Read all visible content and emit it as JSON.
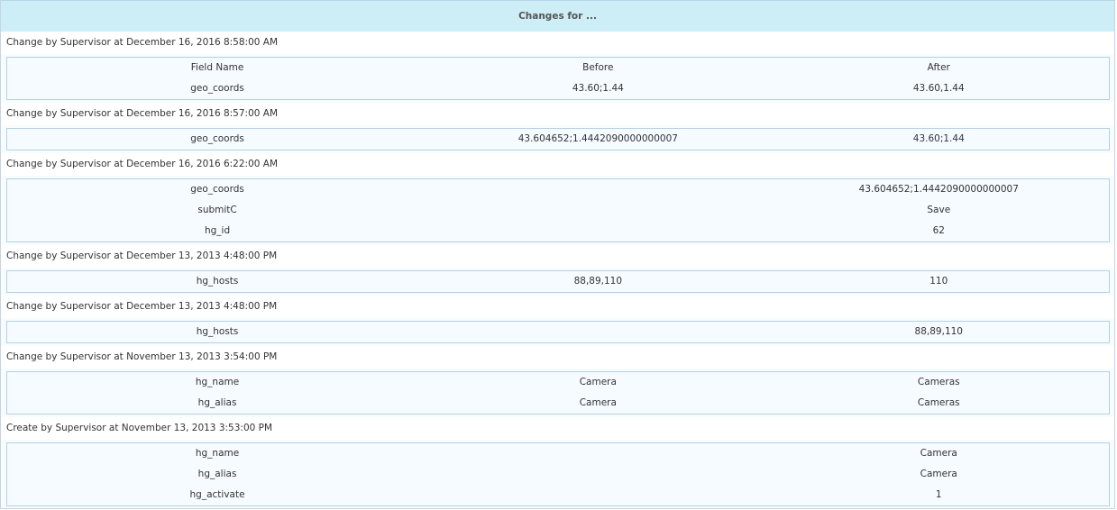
{
  "title": "Changes for ...",
  "columns": {
    "field": "Field Name",
    "before": "Before",
    "after": "After"
  },
  "changes": [
    {
      "label": "Change by Supervisor at December 16, 2016 8:58:00 AM",
      "show_header": true,
      "rows": [
        [
          "geo_coords",
          "43.60;1.44",
          "43.60,1.44"
        ]
      ]
    },
    {
      "label": "Change by Supervisor at December 16, 2016 8:57:00 AM",
      "rows": [
        [
          "geo_coords",
          "43.604652;1.4442090000000007",
          "43.60;1.44"
        ]
      ]
    },
    {
      "label": "Change by Supervisor at December 16, 2016 6:22:00 AM",
      "rows": [
        [
          "geo_coords",
          "",
          "43.604652;1.4442090000000007"
        ],
        [
          "submitC",
          "",
          "Save"
        ],
        [
          "hg_id",
          "",
          "62"
        ]
      ]
    },
    {
      "label": "Change by Supervisor at December 13, 2013 4:48:00 PM",
      "rows": [
        [
          "hg_hosts",
          "88,89,110",
          "110"
        ]
      ]
    },
    {
      "label": "Change by Supervisor at December 13, 2013 4:48:00 PM",
      "rows": [
        [
          "hg_hosts",
          "",
          "88,89,110"
        ]
      ]
    },
    {
      "label": "Change by Supervisor at November 13, 2013 3:54:00 PM",
      "rows": [
        [
          "hg_name",
          "Camera",
          "Cameras"
        ],
        [
          "hg_alias",
          "Camera",
          "Cameras"
        ]
      ]
    },
    {
      "label": "Create by Supervisor at November 13, 2013 3:53:00 PM",
      "rows": [
        [
          "hg_name",
          "",
          "Camera"
        ],
        [
          "hg_alias",
          "",
          "Camera"
        ],
        [
          "hg_activate",
          "",
          "1"
        ]
      ]
    }
  ]
}
